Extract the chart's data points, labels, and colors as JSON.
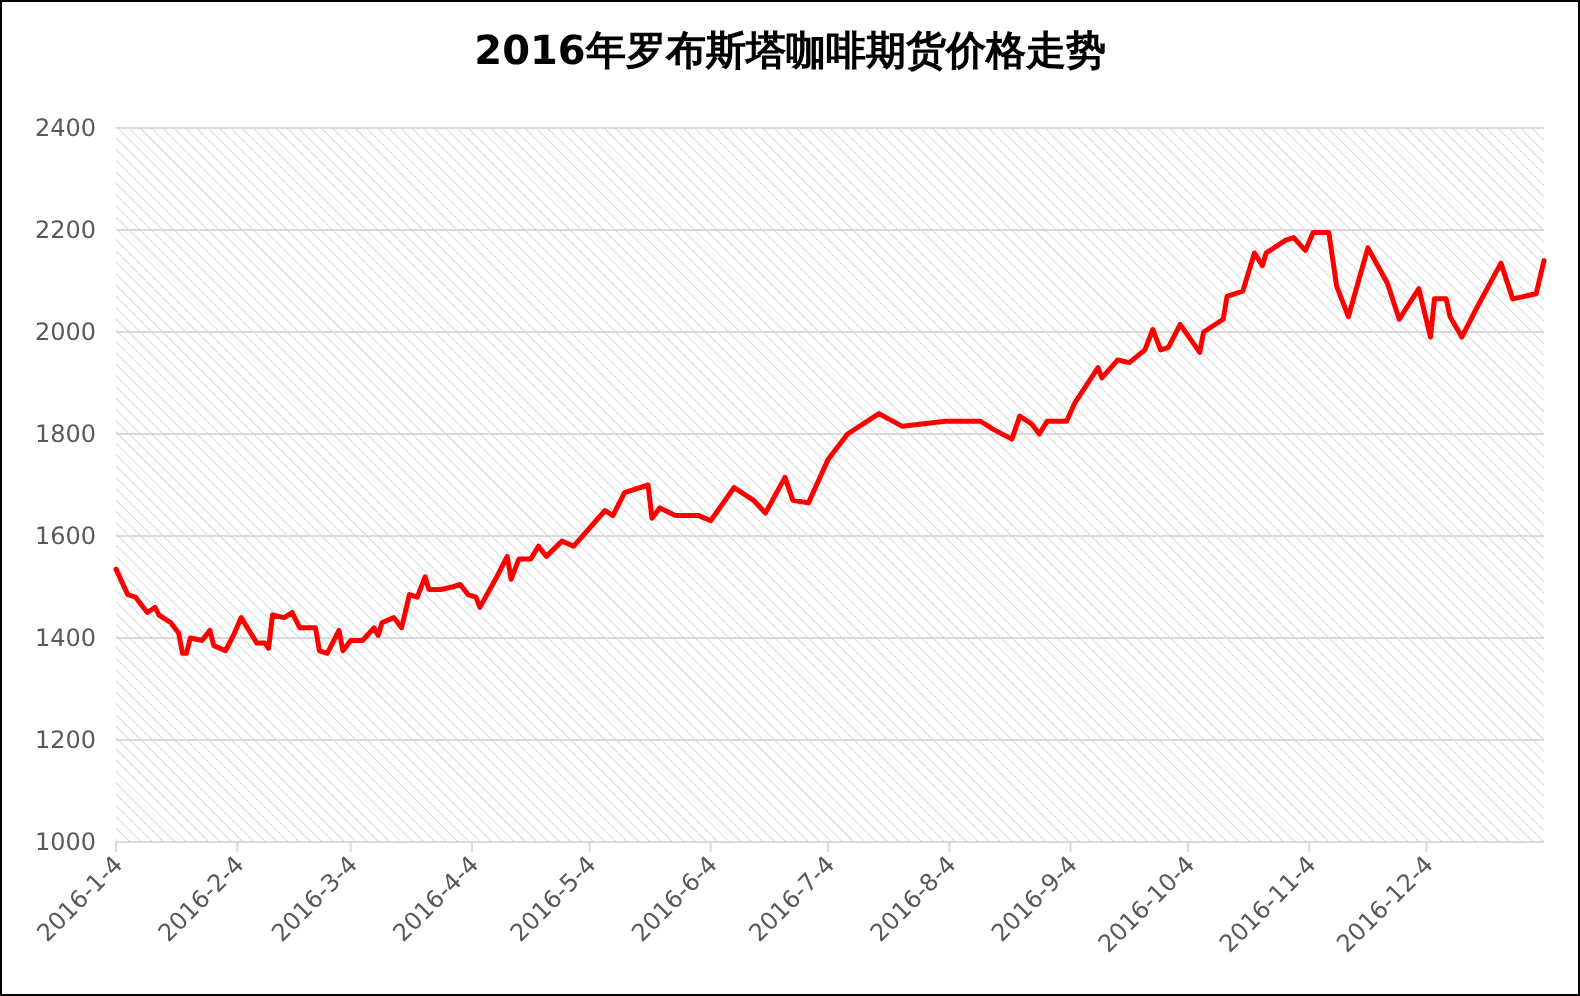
{
  "chart_data": {
    "type": "line",
    "title": "2016年罗布斯塔咖啡期货价格走势",
    "x": [
      "2016-01-04",
      "2016-01-07",
      "2016-01-09",
      "2016-01-12",
      "2016-01-14",
      "2016-01-15",
      "2016-01-18",
      "2016-01-20",
      "2016-01-21",
      "2016-01-22",
      "2016-01-23",
      "2016-01-26",
      "2016-01-28",
      "2016-01-29",
      "2016-02-01",
      "2016-02-03",
      "2016-02-05",
      "2016-02-09",
      "2016-02-11",
      "2016-02-12",
      "2016-02-13",
      "2016-02-16",
      "2016-02-18",
      "2016-02-20",
      "2016-02-24",
      "2016-02-25",
      "2016-02-27",
      "2016-03-01",
      "2016-03-02",
      "2016-03-04",
      "2016-03-07",
      "2016-03-10",
      "2016-03-11",
      "2016-03-12",
      "2016-03-15",
      "2016-03-17",
      "2016-03-19",
      "2016-03-21",
      "2016-03-23",
      "2016-03-24",
      "2016-03-27",
      "2016-03-30",
      "2016-04-01",
      "2016-04-03",
      "2016-04-05",
      "2016-04-06",
      "2016-04-10",
      "2016-04-13",
      "2016-04-14",
      "2016-04-16",
      "2016-04-19",
      "2016-04-21",
      "2016-04-23",
      "2016-04-27",
      "2016-04-30",
      "2016-05-08",
      "2016-05-10",
      "2016-05-13",
      "2016-05-19",
      "2016-05-20",
      "2016-05-22",
      "2016-05-26",
      "2016-06-01",
      "2016-06-04",
      "2016-06-10",
      "2016-06-15",
      "2016-06-18",
      "2016-06-23",
      "2016-06-25",
      "2016-06-29",
      "2016-07-04",
      "2016-07-09",
      "2016-07-17",
      "2016-07-23",
      "2016-08-03",
      "2016-08-12",
      "2016-08-15",
      "2016-08-20",
      "2016-08-22",
      "2016-08-25",
      "2016-08-27",
      "2016-08-29",
      "2016-09-03",
      "2016-09-05",
      "2016-09-11",
      "2016-09-12",
      "2016-09-16",
      "2016-09-19",
      "2016-09-23",
      "2016-09-25",
      "2016-09-27",
      "2016-09-29",
      "2016-10-02",
      "2016-10-07",
      "2016-10-08",
      "2016-10-13",
      "2016-10-14",
      "2016-10-18",
      "2016-10-21",
      "2016-10-23",
      "2016-10-24",
      "2016-10-29",
      "2016-10-31",
      "2016-11-03",
      "2016-11-05",
      "2016-11-09",
      "2016-11-11",
      "2016-11-14",
      "2016-11-19",
      "2016-11-24",
      "2016-11-27",
      "2016-12-02",
      "2016-12-05",
      "2016-12-06",
      "2016-12-09",
      "2016-12-10",
      "2016-12-13",
      "2016-12-17",
      "2016-12-23",
      "2016-12-26",
      "2017-01-01",
      "2017-01-03"
    ],
    "series": [
      {
        "color": "#ff0000",
        "values": [
          1535,
          1485,
          1480,
          1450,
          1460,
          1445,
          1430,
          1410,
          1370,
          1370,
          1400,
          1395,
          1415,
          1385,
          1375,
          1405,
          1440,
          1390,
          1390,
          1380,
          1445,
          1440,
          1450,
          1420,
          1420,
          1375,
          1370,
          1415,
          1375,
          1395,
          1395,
          1420,
          1405,
          1430,
          1440,
          1420,
          1485,
          1480,
          1520,
          1495,
          1495,
          1500,
          1505,
          1485,
          1480,
          1460,
          1515,
          1560,
          1515,
          1555,
          1555,
          1580,
          1560,
          1590,
          1580,
          1650,
          1640,
          1685,
          1700,
          1635,
          1655,
          1640,
          1640,
          1630,
          1695,
          1670,
          1645,
          1715,
          1670,
          1665,
          1750,
          1800,
          1840,
          1815,
          1825,
          1825,
          1810,
          1790,
          1835,
          1820,
          1800,
          1825,
          1825,
          1860,
          1930,
          1910,
          1945,
          1940,
          1965,
          2005,
          1965,
          1970,
          2015,
          1960,
          2000,
          2025,
          2070,
          2080,
          2155,
          2130,
          2155,
          2180,
          2185,
          2160,
          2195,
          2195,
          2090,
          2030,
          2165,
          2095,
          2025,
          2085,
          1990,
          2065,
          2065,
          2030,
          1990,
          2050,
          2135,
          2065,
          2075,
          2140
        ]
      }
    ],
    "xlim": [
      "2016-01-04",
      "2017-01-03"
    ],
    "xticks": [
      {
        "value": "2016-01-04",
        "label": "2016-1-4"
      },
      {
        "value": "2016-02-04",
        "label": "2016-2-4"
      },
      {
        "value": "2016-03-04",
        "label": "2016-3-4"
      },
      {
        "value": "2016-04-04",
        "label": "2016-4-4"
      },
      {
        "value": "2016-05-04",
        "label": "2016-5-4"
      },
      {
        "value": "2016-06-04",
        "label": "2016-6-4"
      },
      {
        "value": "2016-07-04",
        "label": "2016-7-4"
      },
      {
        "value": "2016-08-04",
        "label": "2016-8-4"
      },
      {
        "value": "2016-09-04",
        "label": "2016-9-4"
      },
      {
        "value": "2016-10-04",
        "label": "2016-10-4"
      },
      {
        "value": "2016-11-04",
        "label": "2016-11-4"
      },
      {
        "value": "2016-12-04",
        "label": "2016-12-4"
      }
    ],
    "ylim": [
      1000,
      2400
    ],
    "yticks": [
      1000,
      1200,
      1400,
      1600,
      1800,
      2000,
      2200,
      2400
    ],
    "grid": "y",
    "marker": "none",
    "line_style": "solid"
  }
}
